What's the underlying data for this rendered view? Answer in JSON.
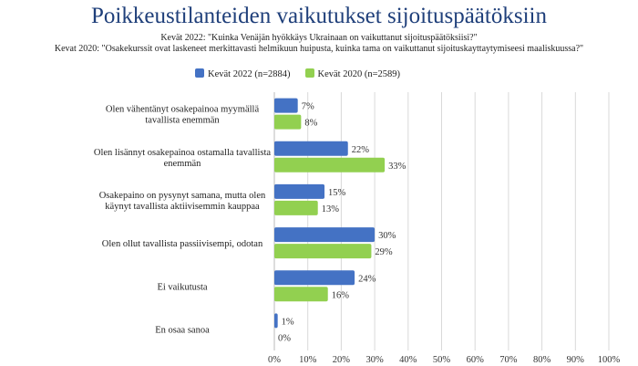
{
  "chart_data": {
    "type": "bar",
    "orientation": "horizontal",
    "title": "Poikkeustilanteiden vaikutukset sijoituspäätöksiin",
    "subtitles": [
      "Kevät 2022: \"Kuinka Venäjän hyökkäys Ukrainaan on vaikuttanut sijoituspäätöksiisi?\"",
      "Kevat 2020: \"Osakekurssit ovat laskeneet merkittavasti helmikuun huipusta, kuinka tama on vaikuttanut sijoituskayttaytymiseesi maaliskuussa?\""
    ],
    "categories": [
      "Olen vähentänyt osakepainoa myymällä tavallista enemmän",
      "Olen lisännyt osakepainoa ostamalla tavallista enemmän",
      "Osakepaino on pysynyt samana, mutta olen käynyt tavallista aktiivisemmin kauppaa",
      "Olen ollut tavallista passiivisempi, odotan",
      "Ei vaikutusta",
      "En osaa sanoa"
    ],
    "series": [
      {
        "name": "Kevät 2022 (n=2884)",
        "color": "#4472c4",
        "values": [
          7,
          22,
          15,
          30,
          24,
          1
        ]
      },
      {
        "name": "Kevät 2020 (n=2589)",
        "color": "#92d050",
        "values": [
          8,
          33,
          13,
          29,
          16,
          0
        ]
      }
    ],
    "xlim": [
      0,
      100
    ],
    "xticks": [
      "0%",
      "10%",
      "20%",
      "30%",
      "40%",
      "50%",
      "60%",
      "70%",
      "80%",
      "90%",
      "100%"
    ],
    "grid": true,
    "legend": "top"
  }
}
